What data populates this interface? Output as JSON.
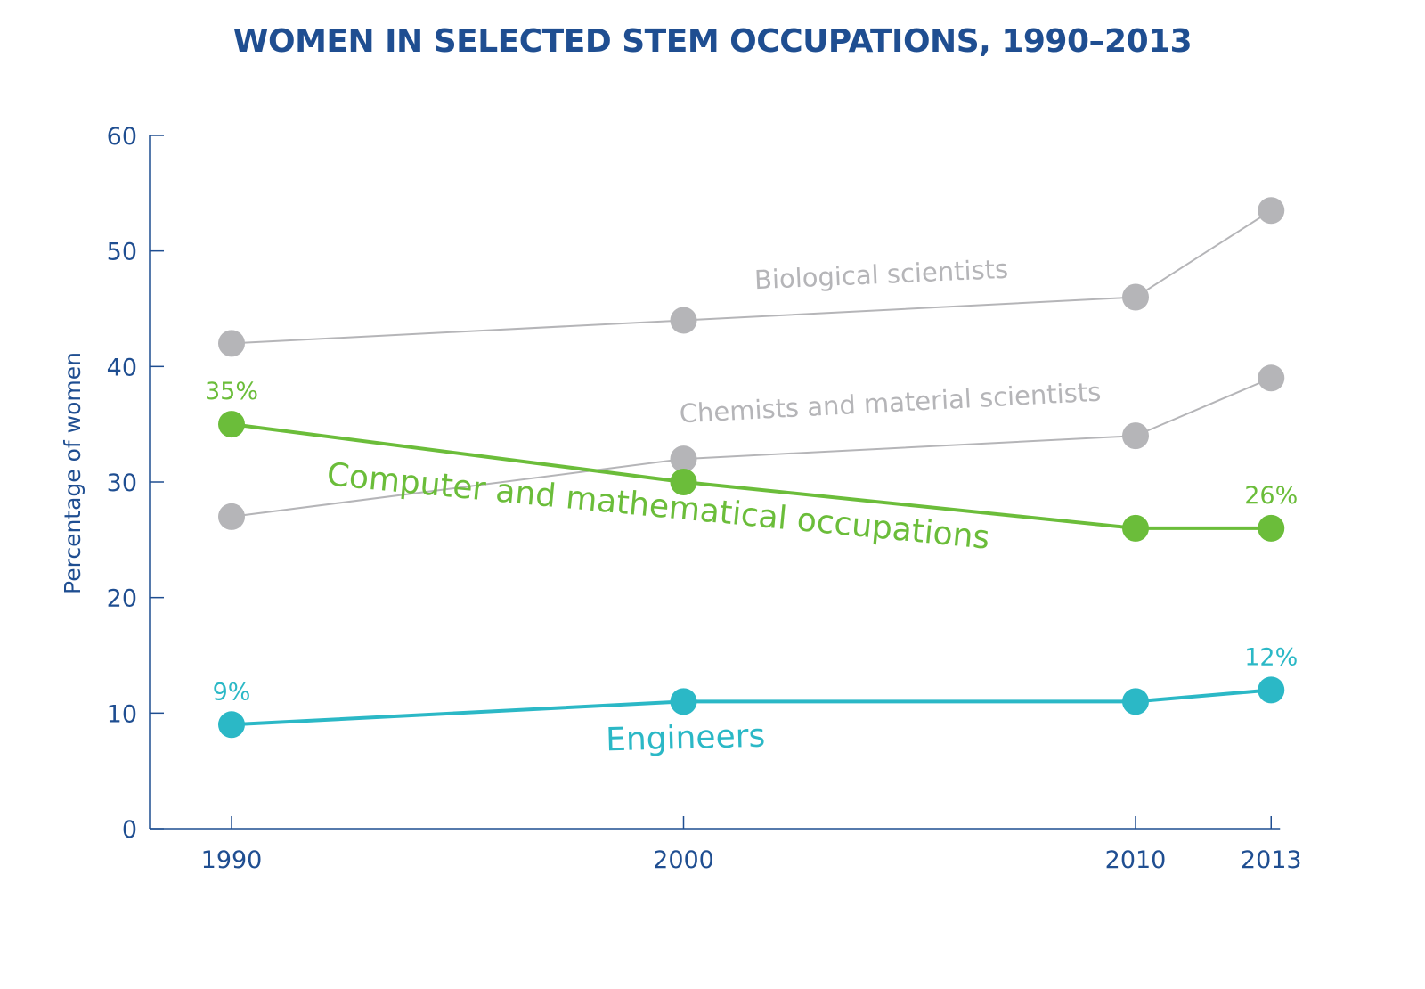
{
  "chart_data": {
    "type": "line",
    "title": "WOMEN IN SELECTED STEM OCCUPATIONS, 1990–2013",
    "xlabel": "",
    "ylabel": "Percentage of women",
    "x": [
      1990,
      2000,
      2010,
      2013
    ],
    "x_tick_labels": [
      "1990",
      "2000",
      "2010",
      "2013"
    ],
    "ylim": [
      0,
      60
    ],
    "y_ticks": [
      0,
      10,
      20,
      30,
      40,
      50,
      60
    ],
    "grid": false,
    "legend": "none (series labelled inline)",
    "series": [
      {
        "name": "Biological scientists",
        "values": [
          42,
          44,
          46,
          53.5
        ],
        "color": "#b5b5b8",
        "point_labels": []
      },
      {
        "name": "Chemists and material scientists",
        "values": [
          27,
          32,
          34,
          39
        ],
        "color": "#b5b5b8",
        "point_labels": []
      },
      {
        "name": "Computer and mathematical occupations",
        "values": [
          35,
          30,
          26,
          26
        ],
        "color": "#6bbd3a",
        "point_labels": [
          {
            "x": 1990,
            "value": 35,
            "text": "35%"
          },
          {
            "x": 2013,
            "value": 26,
            "text": "26%"
          }
        ]
      },
      {
        "name": "Engineers",
        "values": [
          9,
          11,
          11,
          12
        ],
        "color": "#2bb8c6",
        "point_labels": [
          {
            "x": 1990,
            "value": 9,
            "text": "9%"
          },
          {
            "x": 2013,
            "value": 12,
            "text": "12%"
          }
        ]
      }
    ],
    "colors": {
      "axis": "#1f4e91",
      "tick_text": "#1f4e91"
    }
  }
}
